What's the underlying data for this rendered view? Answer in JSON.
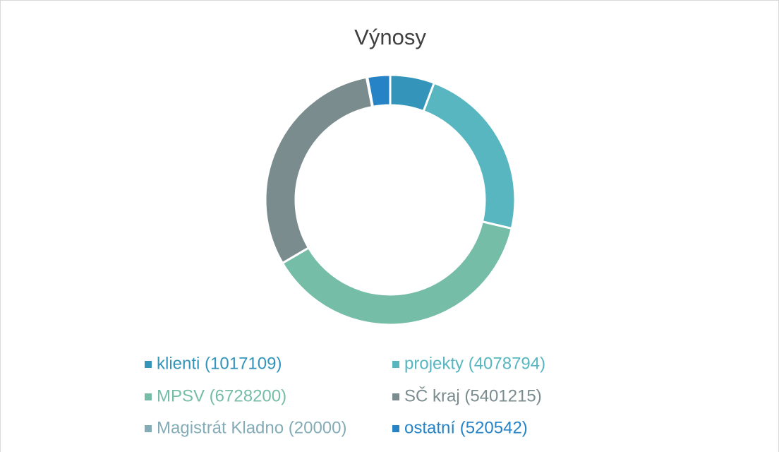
{
  "chart_data": {
    "type": "donut",
    "title": "Výnosy",
    "categories": [
      "klienti (1017109)",
      "projekty (4078794)",
      "MPSV (6728200)",
      "SČ kraj (5401215)",
      "Magistrát Kladno (20000)",
      "ostatní (520542)"
    ],
    "values": [
      1017109,
      4078794,
      6728200,
      5401215,
      20000,
      520542
    ],
    "colors": [
      "#3494ba",
      "#58b6c0",
      "#75bda7",
      "#7a8c8e",
      "#84acb6",
      "#2683c6"
    ],
    "legend": "bottom"
  }
}
